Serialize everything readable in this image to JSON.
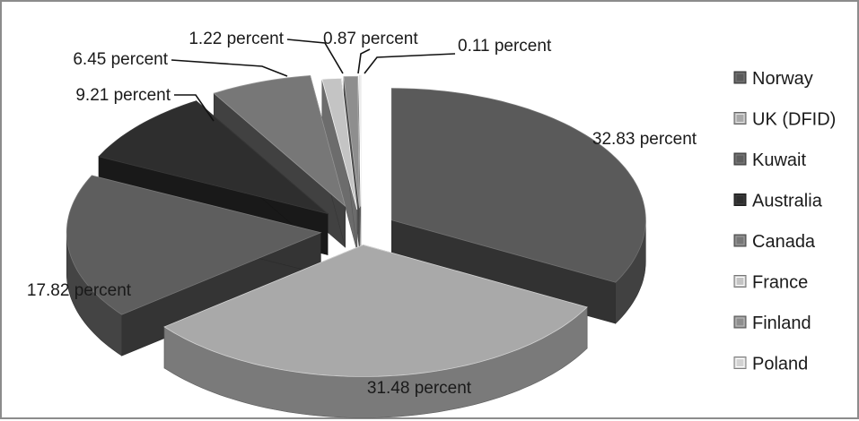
{
  "chart_data": {
    "type": "pie",
    "style": "3d-exploded",
    "title": "",
    "categories": [
      "Norway",
      "UK (DFID)",
      "Kuwait",
      "Australia",
      "Canada",
      "France",
      "Finland",
      "Poland"
    ],
    "values": [
      32.83,
      31.48,
      17.82,
      9.21,
      6.45,
      1.22,
      0.87,
      0.11
    ],
    "data_labels": [
      "32.83 percent",
      "31.48 percent",
      "17.82 percent",
      "9.21 percent",
      "6.45 percent",
      "1.22 percent",
      "0.87 percent",
      "0.11 percent"
    ],
    "colors": [
      "#5a5a5a",
      "#a9a9a9",
      "#5e5e5e",
      "#2e2e2e",
      "#777777",
      "#c4c4c4",
      "#8e8e8e",
      "#d2d2d2"
    ],
    "legend_position": "right",
    "grid": false
  }
}
